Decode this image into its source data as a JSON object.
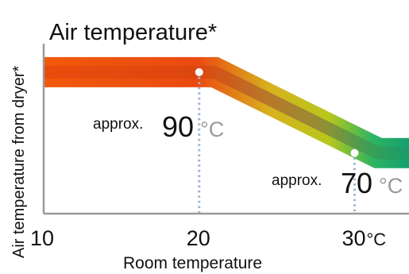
{
  "chart_data": {
    "type": "area",
    "title": "Air temperature*",
    "xlabel": "Room temperature",
    "ylabel": "Air temperature from dryer*",
    "x_ticks": [
      {
        "value": 10,
        "label": "10",
        "unit": ""
      },
      {
        "value": 20,
        "label": "20",
        "unit": ""
      },
      {
        "value": 30,
        "label": "30",
        "unit": "°C"
      }
    ],
    "xlim": [
      10,
      33.5
    ],
    "ylim": [
      55,
      100
    ],
    "band_points": [
      {
        "x": 10,
        "y": 90
      },
      {
        "x": 21,
        "y": 90
      },
      {
        "x": 31.5,
        "y": 70
      },
      {
        "x": 33.5,
        "y": 70
      }
    ],
    "markers": [
      {
        "x": 20,
        "y": 90,
        "prefix": "approx.",
        "value": "90",
        "unit": "°C"
      },
      {
        "x": 30,
        "y": 70,
        "prefix": "approx.",
        "value": "70",
        "unit": "°C"
      }
    ],
    "colors": {
      "hot": "#e8410f",
      "mid": "#c9c81a",
      "cool": "#14a86a",
      "axis": "#999999",
      "guide": "#9fb3d0"
    }
  }
}
